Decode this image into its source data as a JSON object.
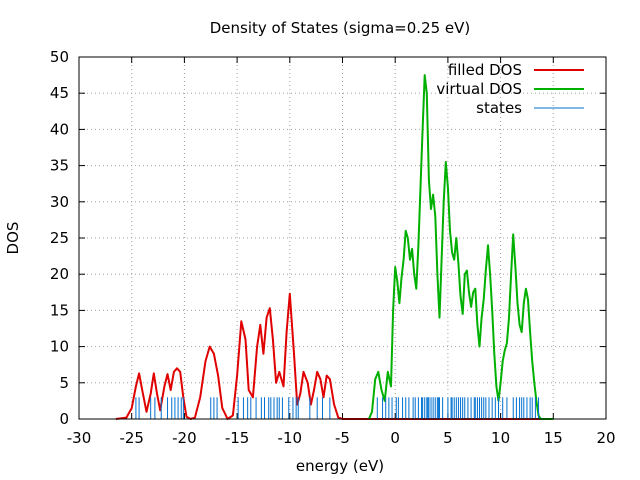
{
  "chart_data": {
    "type": "line",
    "title": "Density of States (sigma=0.25 eV)",
    "xlabel": "energy (eV)",
    "ylabel": "DOS",
    "xlim": [
      -30,
      20
    ],
    "ylim": [
      0,
      50
    ],
    "xticks": [
      -30,
      -25,
      -20,
      -15,
      -10,
      -5,
      0,
      5,
      10,
      15,
      20
    ],
    "yticks": [
      0,
      5,
      10,
      15,
      20,
      25,
      30,
      35,
      40,
      45,
      50
    ],
    "grid": true,
    "legend_position": "top-right",
    "series": [
      {
        "name": "filled DOS",
        "color": "#e00000",
        "x": [
          -26.5,
          -25.5,
          -25.0,
          -24.6,
          -24.3,
          -24.0,
          -23.6,
          -23.2,
          -22.9,
          -22.6,
          -22.3,
          -21.9,
          -21.6,
          -21.3,
          -21.0,
          -20.7,
          -20.4,
          -20.1,
          -19.8,
          -19.4,
          -19.0,
          -18.5,
          -18.0,
          -17.6,
          -17.2,
          -16.8,
          -16.4,
          -15.9,
          -15.4,
          -15.0,
          -14.6,
          -14.2,
          -13.9,
          -13.5,
          -13.1,
          -12.8,
          -12.5,
          -12.2,
          -11.9,
          -11.6,
          -11.3,
          -11.0,
          -10.6,
          -10.3,
          -10.0,
          -9.6,
          -9.3,
          -9.0,
          -8.7,
          -8.3,
          -8.0,
          -7.7,
          -7.4,
          -7.1,
          -6.8,
          -6.5,
          -6.2,
          -5.8,
          -5.4,
          -5.0,
          -2.0,
          5.0,
          15.0
        ],
        "y": [
          0,
          0.2,
          1.5,
          4.5,
          6.3,
          4.0,
          1.0,
          3.5,
          6.3,
          3.5,
          1.2,
          4.5,
          6.2,
          4.0,
          6.5,
          7.0,
          6.5,
          3.0,
          0.3,
          0,
          0.2,
          3.0,
          8.0,
          10.0,
          9.0,
          6.0,
          1.5,
          0,
          0.5,
          6.0,
          13.5,
          11.0,
          4.0,
          3.0,
          10.0,
          13.0,
          9.0,
          14.0,
          15.3,
          11.0,
          5.0,
          6.5,
          4.5,
          12.0,
          17.3,
          9.0,
          2.0,
          3.5,
          6.5,
          5.0,
          2.0,
          4.0,
          6.5,
          5.5,
          3.0,
          6.0,
          5.5,
          2.0,
          0.2,
          0,
          0,
          0,
          0
        ]
      },
      {
        "name": "virtual DOS",
        "color": "#00b000",
        "x": [
          -2.5,
          -2.2,
          -1.9,
          -1.6,
          -1.3,
          -1.0,
          -0.7,
          -0.4,
          -0.2,
          0.0,
          0.2,
          0.4,
          0.6,
          0.8,
          1.0,
          1.2,
          1.4,
          1.6,
          1.8,
          2.0,
          2.2,
          2.4,
          2.6,
          2.8,
          3.0,
          3.2,
          3.4,
          3.6,
          3.8,
          4.0,
          4.2,
          4.4,
          4.6,
          4.8,
          5.0,
          5.2,
          5.4,
          5.6,
          5.8,
          6.0,
          6.2,
          6.4,
          6.6,
          6.8,
          7.0,
          7.2,
          7.4,
          7.6,
          7.8,
          8.0,
          8.2,
          8.4,
          8.6,
          8.8,
          9.0,
          9.2,
          9.4,
          9.6,
          9.8,
          10.0,
          10.2,
          10.4,
          10.6,
          10.8,
          11.0,
          11.2,
          11.4,
          11.6,
          11.8,
          12.0,
          12.2,
          12.4,
          12.6,
          12.8,
          13.0,
          13.2,
          13.4,
          13.6,
          13.8,
          14.0,
          14.2,
          14.5,
          15.0
        ],
        "y": [
          0,
          1.0,
          5.5,
          6.5,
          4.0,
          2.5,
          6.5,
          4.5,
          15.0,
          21.0,
          19.0,
          16.0,
          19.5,
          22.0,
          26.0,
          25.0,
          22.0,
          23.5,
          20.0,
          18.0,
          24.0,
          32.0,
          40.0,
          47.5,
          45.0,
          33.0,
          29.0,
          31.0,
          28.0,
          20.0,
          14.0,
          22.0,
          30.0,
          35.5,
          32.0,
          26.0,
          23.0,
          22.0,
          25.0,
          21.5,
          17.0,
          14.5,
          20.0,
          20.5,
          17.5,
          15.5,
          17.5,
          18.0,
          13.0,
          10.0,
          14.0,
          16.5,
          20.5,
          24.0,
          20.0,
          15.0,
          9.0,
          4.5,
          2.5,
          5.0,
          8.0,
          9.5,
          10.5,
          14.0,
          20.0,
          25.5,
          21.0,
          16.0,
          13.0,
          12.0,
          16.0,
          18.0,
          16.5,
          12.0,
          8.0,
          5.0,
          2.5,
          0.5,
          0,
          0,
          0,
          0,
          0
        ]
      },
      {
        "name": "states",
        "color": "#0070d0",
        "type": "impulse",
        "height": 3,
        "x": [
          -24.6,
          -24.3,
          -23.2,
          -22.8,
          -22.2,
          -21.6,
          -21.2,
          -20.9,
          -20.6,
          -20.3,
          -20.1,
          -17.5,
          -17.2,
          -16.9,
          -14.9,
          -14.4,
          -14.0,
          -13.7,
          -13.2,
          -12.7,
          -12.4,
          -12.0,
          -11.8,
          -11.5,
          -11.2,
          -11.0,
          -10.7,
          -10.1,
          -9.7,
          -9.4,
          -9.2,
          -8.1,
          -7.4,
          -6.9,
          -6.2,
          -1.7,
          -1.2,
          -0.9,
          -0.6,
          -0.3,
          0.1,
          0.3,
          0.7,
          1.0,
          1.3,
          1.7,
          1.9,
          2.2,
          2.5,
          2.6,
          2.8,
          3.0,
          3.1,
          3.2,
          3.4,
          3.6,
          3.8,
          4.0,
          4.1,
          4.2,
          4.5,
          5.0,
          5.3,
          5.4,
          5.6,
          5.8,
          6.0,
          6.2,
          6.4,
          6.6,
          6.9,
          7.2,
          7.5,
          7.6,
          7.8,
          8.0,
          8.2,
          8.4,
          8.6,
          8.9,
          9.2,
          9.5,
          9.8,
          10.2,
          10.6,
          11.2,
          11.5,
          11.8,
          12.0,
          12.2,
          12.5,
          12.8,
          13.0,
          13.3,
          13.6
        ]
      }
    ]
  }
}
